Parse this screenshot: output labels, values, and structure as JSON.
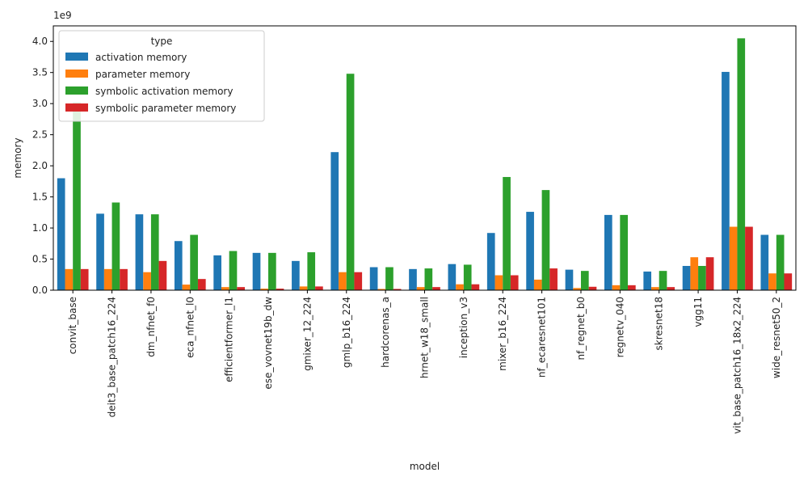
{
  "chart_data": {
    "type": "bar",
    "xlabel": "model",
    "ylabel": "memory",
    "y_multiplier_label": "1e9",
    "ylim": [
      0,
      4.25
    ],
    "yticks": [
      "0.0",
      "0.5",
      "1.0",
      "1.5",
      "2.0",
      "2.5",
      "3.0",
      "3.5",
      "4.0"
    ],
    "ytick_values": [
      0,
      0.5,
      1.0,
      1.5,
      2.0,
      2.5,
      3.0,
      3.5,
      4.0
    ],
    "grid": false,
    "legend_title": "type",
    "legend_position": "top-left",
    "categories": [
      "convit_base",
      "deit3_base_patch16_224",
      "dm_nfnet_f0",
      "eca_nfnet_l0",
      "efficientformer_l1",
      "ese_vovnet19b_dw",
      "gmixer_12_224",
      "gmlp_b16_224",
      "hardcorenas_a",
      "hrnet_w18_small",
      "inception_v3",
      "mixer_b16_224",
      "nf_ecaresnet101",
      "nf_regnet_b0",
      "regnetv_040",
      "skresnet18",
      "vgg11",
      "vit_base_patch16_18x2_224",
      "wide_resnet50_2"
    ],
    "series": [
      {
        "name": "activation memory",
        "color": "#1f77b4",
        "values": [
          1.8,
          1.23,
          1.22,
          0.79,
          0.56,
          0.6,
          0.47,
          2.22,
          0.37,
          0.34,
          0.42,
          0.92,
          1.26,
          0.33,
          1.21,
          0.3,
          0.39,
          3.51,
          0.89
        ]
      },
      {
        "name": "parameter memory",
        "color": "#ff7f0e",
        "values": [
          0.34,
          0.34,
          0.29,
          0.09,
          0.05,
          0.025,
          0.06,
          0.29,
          0.02,
          0.05,
          0.095,
          0.24,
          0.17,
          0.035,
          0.08,
          0.05,
          0.53,
          1.02,
          0.27
        ]
      },
      {
        "name": "symbolic activation memory",
        "color": "#2ca02c",
        "values": [
          3.02,
          1.41,
          1.22,
          0.89,
          0.63,
          0.6,
          0.61,
          3.48,
          0.37,
          0.35,
          0.41,
          1.82,
          1.61,
          0.31,
          1.21,
          0.31,
          0.39,
          4.05,
          0.89
        ]
      },
      {
        "name": "symbolic parameter memory",
        "color": "#d62728",
        "values": [
          0.34,
          0.34,
          0.47,
          0.18,
          0.05,
          0.025,
          0.06,
          0.29,
          0.02,
          0.05,
          0.095,
          0.24,
          0.35,
          0.055,
          0.08,
          0.05,
          0.53,
          1.02,
          0.27
        ]
      }
    ]
  }
}
